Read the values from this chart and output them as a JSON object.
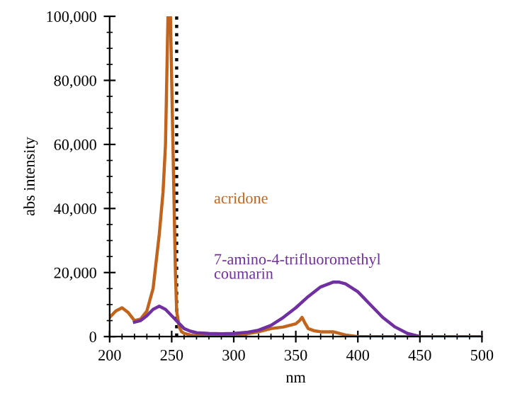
{
  "chart_data": {
    "type": "line",
    "xlabel": "nm",
    "ylabel": "abs intensity",
    "xlim": [
      200,
      500
    ],
    "xticks": [
      200,
      250,
      300,
      350,
      400,
      450,
      500
    ],
    "ylim": [
      0,
      100000
    ],
    "yticks": [
      {
        "value": 0,
        "label": "0"
      },
      {
        "value": 20000,
        "label": "20,000"
      },
      {
        "value": 40000,
        "label": "40,000"
      },
      {
        "value": 60000,
        "label": "60,000"
      },
      {
        "value": 80000,
        "label": "80,000"
      },
      {
        "value": 100000,
        "label": "100,000"
      }
    ],
    "grid": false,
    "legend": false,
    "marker": "none",
    "line_style": "solid",
    "ref_lines": [
      {
        "axis": "x",
        "value": 254,
        "color": "#000000",
        "line_style": "dotted"
      }
    ],
    "series": [
      {
        "name": "acridone",
        "color": "#c0641e",
        "x": [
          200,
          205,
          210,
          215,
          220,
          225,
          230,
          235,
          240,
          243,
          245,
          246,
          247,
          248,
          249,
          250,
          251,
          252,
          253,
          254,
          256,
          258,
          260,
          265,
          270,
          280,
          290,
          300,
          310,
          320,
          330,
          340,
          345,
          350,
          353,
          355,
          357,
          360,
          365,
          370,
          380,
          390,
          400,
          420,
          450,
          500
        ],
        "values": [
          6000,
          8000,
          9000,
          7500,
          5000,
          5500,
          8000,
          15000,
          32000,
          45000,
          60000,
          80000,
          100000,
          95000,
          100000,
          80000,
          60000,
          40000,
          20000,
          8000,
          3000,
          1500,
          1000,
          500,
          300,
          300,
          400,
          500,
          800,
          1500,
          2500,
          3000,
          3500,
          4000,
          5000,
          6000,
          4500,
          2500,
          1800,
          1500,
          1500,
          500,
          0,
          0,
          0,
          0
        ]
      },
      {
        "name": "7-amino-4-trifluoromethyl\ncoumarin",
        "color": "#7030a0",
        "x": [
          220,
          225,
          230,
          235,
          240,
          245,
          250,
          255,
          260,
          265,
          270,
          280,
          290,
          300,
          310,
          320,
          330,
          340,
          350,
          360,
          370,
          380,
          385,
          390,
          400,
          410,
          420,
          430,
          440,
          450
        ],
        "values": [
          4500,
          5000,
          6500,
          8500,
          9500,
          8500,
          6500,
          4500,
          2500,
          1700,
          1200,
          1000,
          900,
          1000,
          1300,
          2000,
          3500,
          6000,
          9000,
          12500,
          15500,
          17000,
          17000,
          16500,
          14000,
          10000,
          6000,
          3000,
          1000,
          0
        ]
      }
    ]
  }
}
